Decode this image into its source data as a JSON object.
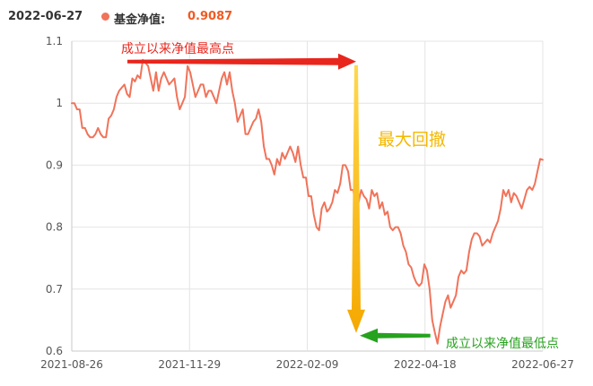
{
  "header": {
    "date": "2022-06-27",
    "legend_label": "基金净值:",
    "value": "0.9087"
  },
  "colors": {
    "line": "#f0735a",
    "peak_annotation": "#e8261d",
    "drawdown_arrow": "#f5b800",
    "trough_annotation": "#27a21f",
    "grid": "#e4e4e4"
  },
  "annotations": {
    "peak_label": "成立以来净值最高点",
    "drawdown_label": "最大回撤",
    "trough_label": "成立以来净值最低点"
  },
  "chart_data": {
    "type": "line",
    "title": "",
    "xlabel": "",
    "ylabel": "",
    "ylim": [
      0.6,
      1.1
    ],
    "yticks": [
      "0.6",
      "0.7",
      "0.8",
      "0.9",
      "1",
      "1.1"
    ],
    "xticks": [
      "2021-08-26",
      "2021-11-29",
      "2022-02-09",
      "2022-04-18",
      "2022-06-27"
    ],
    "grid": true,
    "series": [
      {
        "name": "基金净值",
        "values": [
          1.0,
          1.0,
          0.99,
          0.99,
          0.96,
          0.96,
          0.95,
          0.945,
          0.945,
          0.95,
          0.96,
          0.95,
          0.945,
          0.945,
          0.975,
          0.98,
          0.99,
          1.01,
          1.02,
          1.025,
          1.03,
          1.015,
          1.01,
          1.04,
          1.035,
          1.045,
          1.04,
          1.07,
          1.065,
          1.06,
          1.04,
          1.02,
          1.05,
          1.02,
          1.04,
          1.05,
          1.04,
          1.03,
          1.035,
          1.04,
          1.01,
          0.99,
          1.0,
          1.01,
          1.06,
          1.05,
          1.03,
          1.01,
          1.02,
          1.03,
          1.03,
          1.01,
          1.02,
          1.02,
          1.01,
          1.0,
          1.02,
          1.04,
          1.05,
          1.03,
          1.05,
          1.02,
          1.0,
          0.97,
          0.98,
          0.99,
          0.95,
          0.95,
          0.96,
          0.97,
          0.975,
          0.99,
          0.97,
          0.93,
          0.91,
          0.91,
          0.9,
          0.885,
          0.91,
          0.9,
          0.92,
          0.91,
          0.92,
          0.93,
          0.92,
          0.905,
          0.93,
          0.9,
          0.88,
          0.88,
          0.85,
          0.85,
          0.82,
          0.8,
          0.795,
          0.83,
          0.84,
          0.825,
          0.83,
          0.84,
          0.86,
          0.855,
          0.87,
          0.9,
          0.9,
          0.89,
          0.86,
          0.86,
          0.83,
          0.84,
          0.86,
          0.85,
          0.845,
          0.83,
          0.86,
          0.85,
          0.855,
          0.83,
          0.84,
          0.82,
          0.825,
          0.8,
          0.795,
          0.8,
          0.8,
          0.79,
          0.77,
          0.76,
          0.74,
          0.735,
          0.72,
          0.71,
          0.705,
          0.71,
          0.74,
          0.73,
          0.7,
          0.65,
          0.63,
          0.612,
          0.64,
          0.66,
          0.68,
          0.69,
          0.67,
          0.68,
          0.69,
          0.72,
          0.73,
          0.725,
          0.73,
          0.76,
          0.78,
          0.79,
          0.79,
          0.785,
          0.77,
          0.775,
          0.78,
          0.775,
          0.79,
          0.8,
          0.81,
          0.83,
          0.86,
          0.85,
          0.86,
          0.84,
          0.855,
          0.85,
          0.84,
          0.83,
          0.845,
          0.86,
          0.865,
          0.86,
          0.87,
          0.89,
          0.91,
          0.9087
        ]
      }
    ]
  }
}
